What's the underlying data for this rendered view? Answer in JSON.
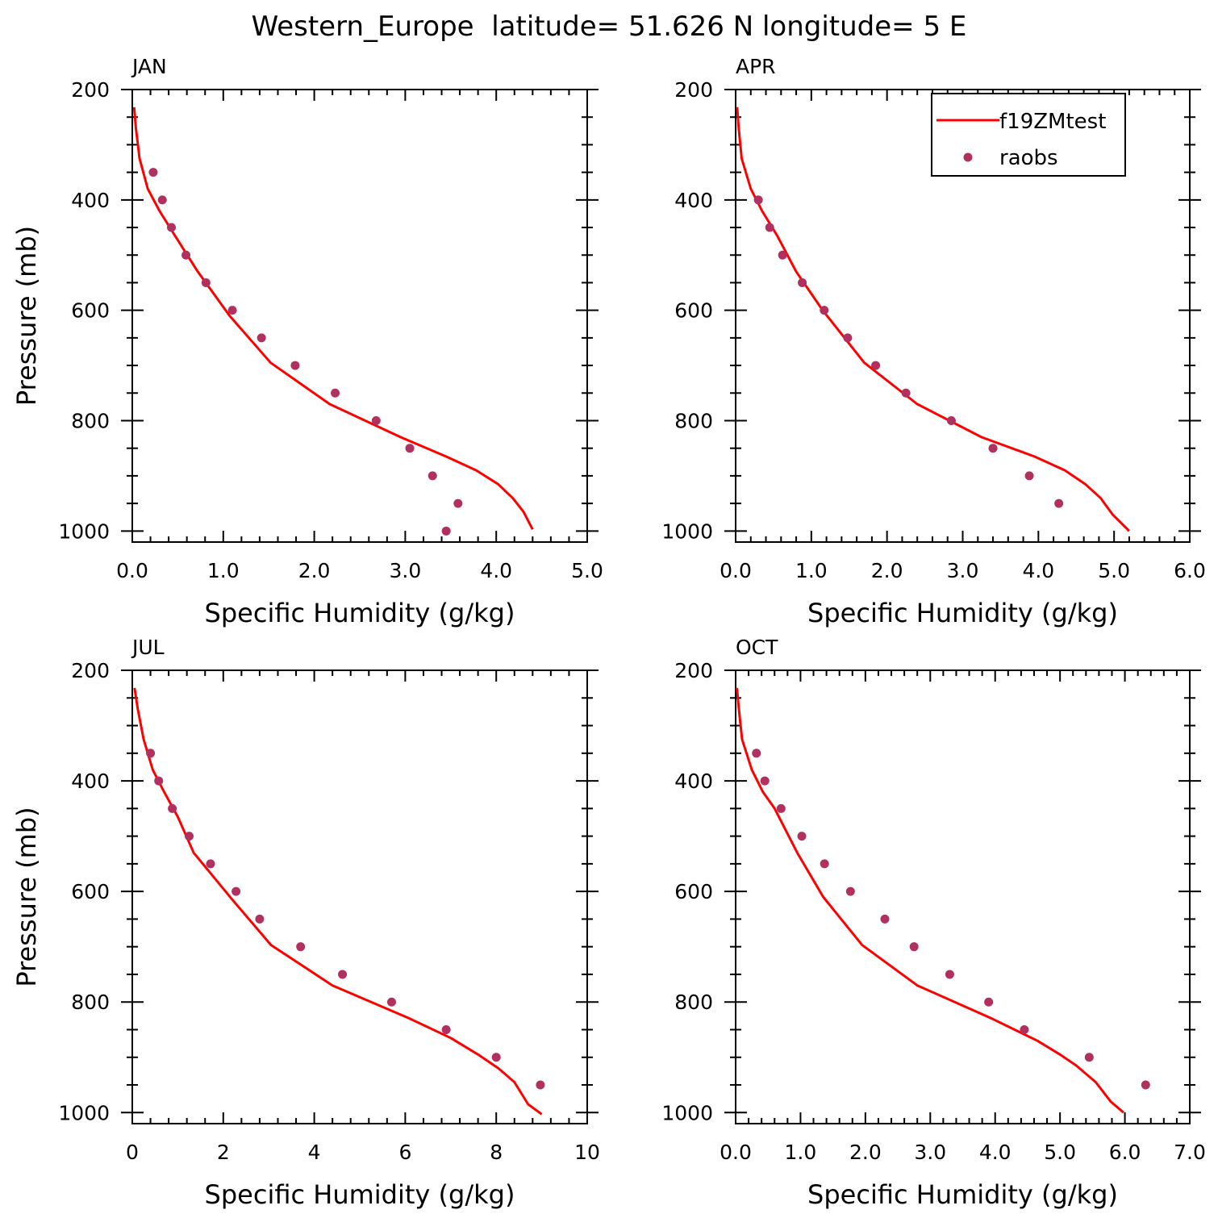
{
  "page_title": "Western_Europe  latitude= 51.626 N longitude= 5 E",
  "colors": {
    "model": "#ff0000",
    "obs": "#b03060",
    "axis": "#000000"
  },
  "legend": {
    "model_label": "f19ZMtest",
    "obs_label": "raobs",
    "placement": "top-right of APR panel"
  },
  "chart_data": [
    {
      "type": "line",
      "panel": "JAN",
      "xlabel": "Specific Humidity (g/kg)",
      "ylabel": "Pressure (mb)",
      "xlim": [
        0,
        5
      ],
      "ylim": [
        200,
        1020
      ],
      "y_inverted": true,
      "x_ticks": [
        0,
        1,
        2,
        3,
        4,
        5
      ],
      "x_tick_labels": [
        "0.0",
        "1.0",
        "2.0",
        "3.0",
        "4.0",
        "5.0"
      ],
      "y_ticks": [
        200,
        400,
        600,
        800,
        1000
      ],
      "y_tick_labels": [
        "200",
        "400",
        "600",
        "800",
        "1000"
      ],
      "series": [
        {
          "name": "f19ZMtest",
          "kind": "line",
          "x": [
            0.02,
            0.04,
            0.08,
            0.17,
            0.3,
            0.47,
            0.72,
            1.07,
            1.52,
            2.17,
            2.95,
            3.45,
            3.78,
            4.02,
            4.18,
            4.3,
            4.4
          ],
          "y": [
            232,
            270,
            325,
            380,
            420,
            465,
            530,
            610,
            695,
            770,
            830,
            865,
            890,
            915,
            940,
            965,
            997
          ]
        },
        {
          "name": "raobs",
          "kind": "scatter",
          "x": [
            0.23,
            0.33,
            0.43,
            0.59,
            0.81,
            1.1,
            1.42,
            1.79,
            2.23,
            2.68,
            3.05,
            3.3,
            3.58,
            3.45
          ],
          "y": [
            350,
            400,
            450,
            500,
            550,
            600,
            650,
            700,
            750,
            800,
            850,
            900,
            950,
            1000
          ]
        }
      ]
    },
    {
      "type": "line",
      "panel": "APR",
      "xlabel": "Specific Humidity (g/kg)",
      "ylabel": "",
      "xlim": [
        0,
        6
      ],
      "ylim": [
        200,
        1020
      ],
      "y_inverted": true,
      "x_ticks": [
        0,
        1,
        2,
        3,
        4,
        5,
        6
      ],
      "x_tick_labels": [
        "0.0",
        "1.0",
        "2.0",
        "3.0",
        "4.0",
        "5.0",
        "6.0"
      ],
      "y_ticks": [
        200,
        400,
        600,
        800,
        1000
      ],
      "y_tick_labels": [
        "200",
        "400",
        "600",
        "800",
        "1000"
      ],
      "series": [
        {
          "name": "f19ZMtest",
          "kind": "line",
          "x": [
            0.02,
            0.04,
            0.08,
            0.2,
            0.35,
            0.55,
            0.8,
            1.15,
            1.7,
            2.4,
            3.25,
            3.95,
            4.35,
            4.62,
            4.82,
            4.98,
            5.2
          ],
          "y": [
            232,
            270,
            325,
            380,
            420,
            465,
            530,
            600,
            695,
            770,
            830,
            865,
            890,
            915,
            940,
            970,
            1000
          ]
        },
        {
          "name": "raobs",
          "kind": "scatter",
          "x": [
            0.3,
            0.45,
            0.62,
            0.88,
            1.17,
            1.48,
            1.85,
            2.25,
            2.85,
            3.4,
            3.88,
            4.27
          ],
          "y": [
            400,
            450,
            500,
            550,
            600,
            650,
            700,
            750,
            800,
            850,
            900,
            950
          ]
        }
      ]
    },
    {
      "type": "line",
      "panel": "JUL",
      "xlabel": "Specific Humidity (g/kg)",
      "ylabel": "Pressure (mb)",
      "xlim": [
        0,
        10
      ],
      "ylim": [
        200,
        1020
      ],
      "y_inverted": true,
      "x_ticks": [
        0,
        2,
        4,
        6,
        8,
        10
      ],
      "x_tick_labels": [
        "0",
        "2",
        "4",
        "6",
        "8",
        "10"
      ],
      "y_ticks": [
        200,
        400,
        600,
        800,
        1000
      ],
      "y_tick_labels": [
        "200",
        "400",
        "600",
        "800",
        "1000"
      ],
      "series": [
        {
          "name": "f19ZMtest",
          "kind": "line",
          "x": [
            0.05,
            0.12,
            0.25,
            0.45,
            0.7,
            1.0,
            1.35,
            2.2,
            3.05,
            4.4,
            6.1,
            7.0,
            7.6,
            8.05,
            8.4,
            8.7,
            9.0
          ],
          "y": [
            232,
            270,
            325,
            380,
            420,
            465,
            530,
            615,
            697,
            770,
            830,
            865,
            895,
            920,
            945,
            985,
            1003
          ]
        },
        {
          "name": "raobs",
          "kind": "scatter",
          "x": [
            0.4,
            0.58,
            0.88,
            1.25,
            1.72,
            2.28,
            2.8,
            3.7,
            4.62,
            5.7,
            6.9,
            8.0,
            8.97
          ],
          "y": [
            350,
            400,
            450,
            500,
            550,
            600,
            650,
            700,
            750,
            800,
            850,
            900,
            950
          ]
        }
      ]
    },
    {
      "type": "line",
      "panel": "OCT",
      "xlabel": "Specific Humidity (g/kg)",
      "ylabel": "",
      "xlim": [
        0,
        7
      ],
      "ylim": [
        200,
        1020
      ],
      "y_inverted": true,
      "x_ticks": [
        0,
        1,
        2,
        3,
        4,
        5,
        6,
        7
      ],
      "x_tick_labels": [
        "0.0",
        "1.0",
        "2.0",
        "3.0",
        "4.0",
        "5.0",
        "6.0",
        "7.0"
      ],
      "y_ticks": [
        200,
        400,
        600,
        800,
        1000
      ],
      "y_tick_labels": [
        "200",
        "400",
        "600",
        "800",
        "1000"
      ],
      "series": [
        {
          "name": "f19ZMtest",
          "kind": "line",
          "x": [
            0.02,
            0.05,
            0.1,
            0.25,
            0.42,
            0.6,
            0.95,
            1.35,
            1.95,
            2.8,
            3.95,
            4.65,
            5.0,
            5.25,
            5.55,
            5.78,
            5.98
          ],
          "y": [
            232,
            270,
            325,
            380,
            420,
            450,
            530,
            610,
            697,
            770,
            830,
            870,
            895,
            915,
            945,
            980,
            1000
          ]
        },
        {
          "name": "raobs",
          "kind": "scatter",
          "x": [
            0.32,
            0.45,
            0.7,
            1.02,
            1.37,
            1.77,
            2.3,
            2.75,
            3.3,
            3.9,
            4.45,
            5.45,
            6.32
          ],
          "y": [
            350,
            400,
            450,
            500,
            550,
            600,
            650,
            700,
            750,
            800,
            850,
            900,
            950
          ]
        }
      ]
    }
  ]
}
